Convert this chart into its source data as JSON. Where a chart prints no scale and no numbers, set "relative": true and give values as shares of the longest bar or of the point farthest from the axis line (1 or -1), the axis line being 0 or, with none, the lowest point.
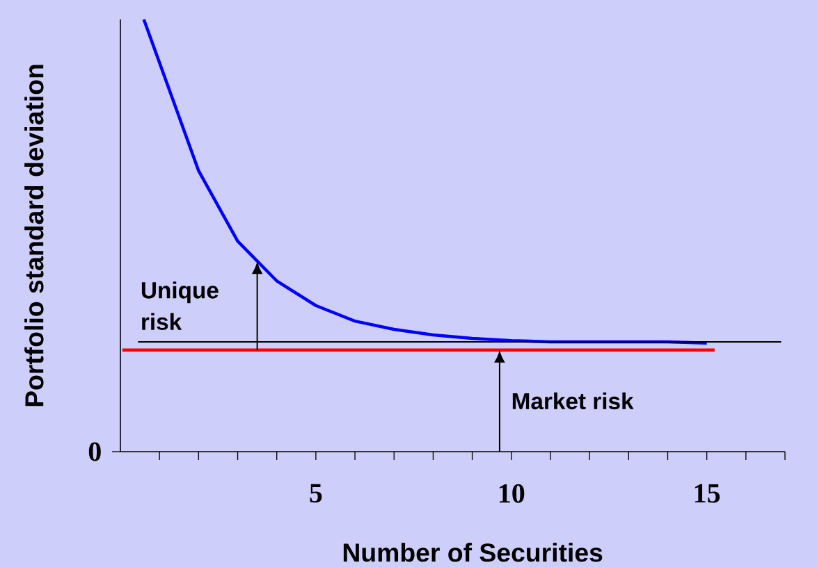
{
  "chart_data": {
    "type": "line",
    "relative": true,
    "xlabel": "Number of Securities",
    "ylabel": "Portfolio standard deviation",
    "xlim": [
      0,
      17
    ],
    "xticks": [
      {
        "value": 1,
        "label": null
      },
      {
        "value": 2,
        "label": null
      },
      {
        "value": 3,
        "label": null
      },
      {
        "value": 4,
        "label": null
      },
      5,
      {
        "value": 6,
        "label": null
      },
      {
        "value": 7,
        "label": null
      },
      {
        "value": 8,
        "label": null
      },
      {
        "value": 9,
        "label": null
      },
      10,
      {
        "value": 11,
        "label": null
      },
      {
        "value": 12,
        "label": null
      },
      {
        "value": 13,
        "label": null
      },
      {
        "value": 14,
        "label": null
      },
      15,
      {
        "value": 16,
        "label": null
      },
      {
        "value": 17,
        "label": null
      }
    ],
    "series": [
      {
        "color": "#0000ff",
        "x": [
          0.6,
          2,
          3,
          4,
          5,
          6,
          7,
          8,
          9,
          10,
          11,
          12,
          13,
          14,
          15
        ],
        "values": [
          1,
          0.65,
          0.487,
          0.395,
          0.338,
          0.302,
          0.283,
          0.27,
          0.262,
          0.257,
          0.254,
          0.254,
          0.254,
          0.254,
          0.251
        ]
      },
      {
        "color": "#ff0000",
        "x": [
          0.05,
          15.2
        ],
        "values": [
          0.235,
          0.235
        ]
      },
      {
        "color": "#000000",
        "x": [
          0.45,
          16.9
        ],
        "values": [
          0.254,
          0.254
        ]
      }
    ],
    "annotations": [
      {
        "text": "Unique risk",
        "x": 3.5,
        "y": 0.44
      },
      {
        "text": "Market risk",
        "x": 9.7,
        "y": 0.235
      },
      "0"
    ]
  }
}
